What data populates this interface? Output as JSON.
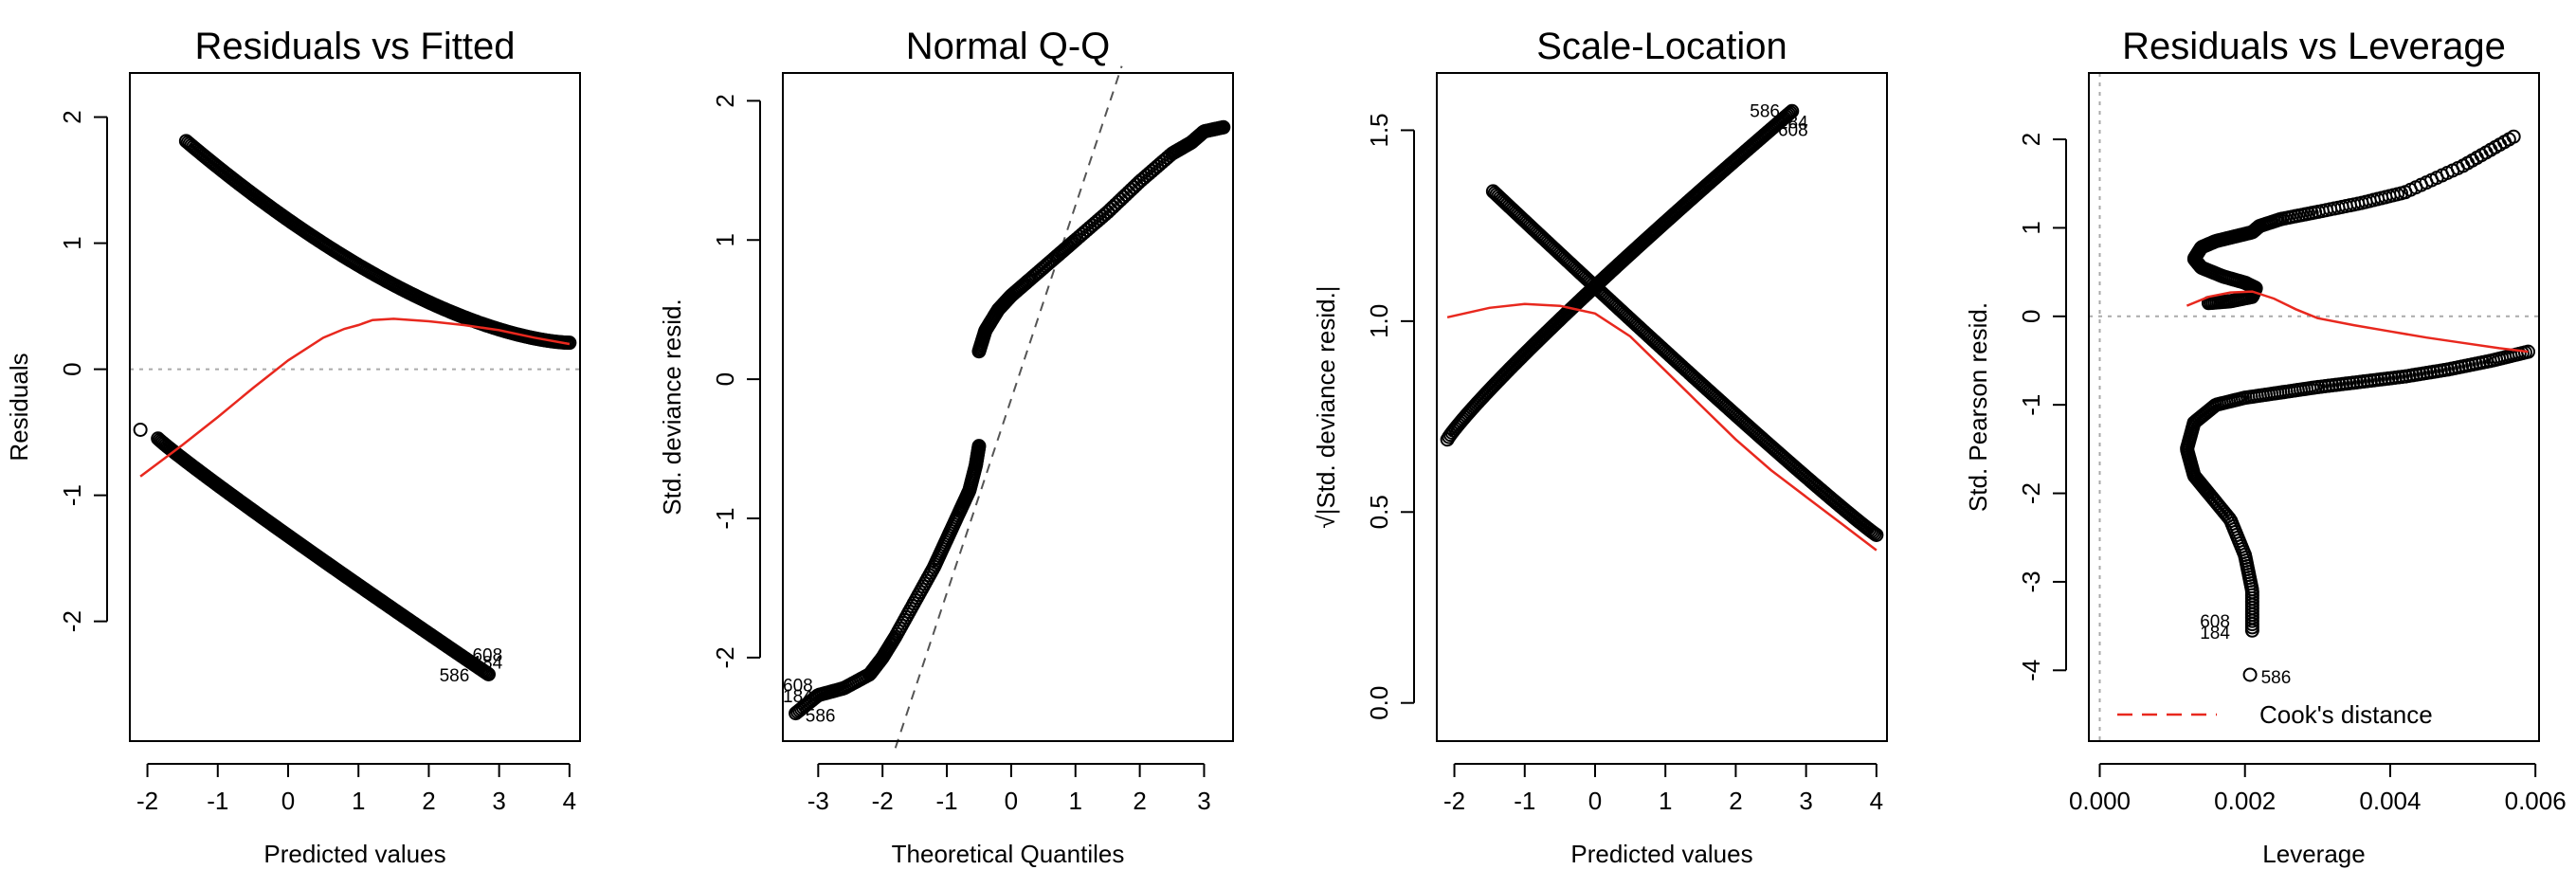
{
  "chart_data": [
    {
      "type": "scatter",
      "title": "Residuals vs Fitted",
      "xlabel": "Predicted values",
      "ylabel": "Residuals",
      "xlim": [
        -2.25,
        4.15
      ],
      "ylim": [
        -2.95,
        2.35
      ],
      "xticks": [
        -2,
        -1,
        0,
        1,
        2,
        3,
        4
      ],
      "yticks": [
        -2,
        -1,
        0,
        1,
        2
      ],
      "reference_lines": [
        {
          "axis": "y",
          "value": 0,
          "style": "dotted",
          "color": "#aaaaaa"
        }
      ],
      "series": [
        {
          "kind": "points",
          "curve": "upper",
          "x_range": [
            -1.45,
            4.0
          ],
          "y_start": 1.81,
          "y_end": 0.21,
          "n": 220
        },
        {
          "kind": "points",
          "curve": "lower",
          "x_range": [
            -1.85,
            2.85
          ],
          "y_start": -0.55,
          "y_end": -2.42,
          "n": 220
        },
        {
          "kind": "points",
          "curve": "single",
          "x": [
            -2.1
          ],
          "y": [
            -0.48
          ]
        },
        {
          "kind": "smooth",
          "color": "#e8281e",
          "x": [
            -2.1,
            -1.5,
            -1.0,
            -0.5,
            0.0,
            0.5,
            0.8,
            1.0,
            1.2,
            1.5,
            2.0,
            2.5,
            3.0,
            3.5,
            4.0
          ],
          "y": [
            -0.85,
            -0.6,
            -0.38,
            -0.15,
            0.07,
            0.25,
            0.32,
            0.35,
            0.39,
            0.4,
            0.38,
            0.35,
            0.31,
            0.25,
            0.2
          ]
        }
      ],
      "point_labels": [
        {
          "text": "608",
          "x": 2.62,
          "y": -2.27
        },
        {
          "text": "184",
          "x": 2.62,
          "y": -2.33
        },
        {
          "text": "586",
          "x": 2.15,
          "y": -2.43
        }
      ]
    },
    {
      "type": "scatter",
      "title": "Normal Q-Q",
      "xlabel": "Theoretical Quantiles",
      "ylabel": "Std. deviance resid.",
      "xlim": [
        -3.55,
        3.45
      ],
      "ylim": [
        -2.6,
        2.2
      ],
      "xticks": [
        -3,
        -2,
        -1,
        0,
        1,
        2,
        3
      ],
      "yticks": [
        -2,
        -1,
        0,
        1,
        2
      ],
      "reference_lines": [
        {
          "axis": "diag",
          "x1": -1.8,
          "y1": -2.65,
          "x2": 1.72,
          "y2": 2.25,
          "style": "dashed",
          "color": "#555555"
        }
      ],
      "series": [
        {
          "kind": "points",
          "curve": "lower_qq",
          "x": [
            -3.35,
            -3.0,
            -2.6,
            -2.2,
            -2.0,
            -1.8,
            -1.5,
            -1.2,
            -1.0,
            -0.8,
            -0.65,
            -0.55,
            -0.5
          ],
          "y": [
            -2.4,
            -2.27,
            -2.22,
            -2.12,
            -2.0,
            -1.85,
            -1.6,
            -1.35,
            -1.15,
            -0.95,
            -0.8,
            -0.62,
            -0.48
          ],
          "n": 150
        },
        {
          "kind": "points",
          "curve": "upper_qq",
          "x": [
            -0.5,
            -0.4,
            -0.2,
            0.0,
            0.3,
            0.7,
            1.0,
            1.5,
            2.0,
            2.5,
            2.8,
            3.0,
            3.3
          ],
          "y": [
            0.2,
            0.35,
            0.5,
            0.6,
            0.72,
            0.88,
            1.0,
            1.2,
            1.42,
            1.62,
            1.7,
            1.78,
            1.81
          ],
          "n": 150
        }
      ],
      "point_labels": [
        {
          "text": "608",
          "x": -3.55,
          "y": -2.2
        },
        {
          "text": "184",
          "x": -3.55,
          "y": -2.28
        },
        {
          "text": "586",
          "x": -3.2,
          "y": -2.42
        }
      ]
    },
    {
      "type": "scatter",
      "title": "Scale-Location",
      "xlabel": "Predicted values",
      "ylabel": "√|Std. deviance resid.|",
      "xlim": [
        -2.25,
        4.15
      ],
      "ylim": [
        -0.1,
        1.65
      ],
      "xticks": [
        -2,
        -1,
        0,
        1,
        2,
        3,
        4
      ],
      "yticks": [
        0.0,
        0.5,
        1.0,
        1.5
      ],
      "yticklabels": [
        "0.0",
        "0.5",
        "1.0",
        "1.5"
      ],
      "series": [
        {
          "kind": "points",
          "curve": "rising",
          "x_range": [
            -2.1,
            2.8
          ],
          "y_start": 0.69,
          "y_end": 1.55,
          "n": 220
        },
        {
          "kind": "points",
          "curve": "falling",
          "x_range": [
            -1.45,
            4.0
          ],
          "y_start": 1.34,
          "y_end": 0.44,
          "n": 220
        },
        {
          "kind": "smooth",
          "color": "#e8281e",
          "x": [
            -2.1,
            -1.5,
            -1.0,
            -0.5,
            0.0,
            0.5,
            1.0,
            1.5,
            2.0,
            2.5,
            3.0,
            3.5,
            4.0
          ],
          "y": [
            1.01,
            1.035,
            1.045,
            1.04,
            1.02,
            0.96,
            0.87,
            0.78,
            0.69,
            0.61,
            0.54,
            0.47,
            0.4
          ]
        }
      ],
      "point_labels": [
        {
          "text": "586",
          "x": 2.2,
          "y": 1.55
        },
        {
          "text": "184",
          "x": 2.6,
          "y": 1.52
        },
        {
          "text": "608",
          "x": 2.6,
          "y": 1.5
        }
      ]
    },
    {
      "type": "scatter",
      "title": "Residuals vs Leverage",
      "xlabel": "Leverage",
      "ylabel": "Std. Pearson resid.",
      "xlim": [
        -0.00015,
        0.00605
      ],
      "ylim": [
        -4.8,
        2.75
      ],
      "xticks": [
        0.0,
        0.002,
        0.004,
        0.006
      ],
      "xticklabels": [
        "0.000",
        "0.002",
        "0.004",
        "0.006"
      ],
      "yticks": [
        -4,
        -3,
        -2,
        -1,
        0,
        1,
        2
      ],
      "reference_lines": [
        {
          "axis": "y",
          "value": 0,
          "style": "dotted",
          "color": "#aaaaaa"
        },
        {
          "axis": "x",
          "value": 0,
          "style": "dotted",
          "color": "#aaaaaa"
        }
      ],
      "series": [
        {
          "kind": "points",
          "curve": "upper_lev",
          "x": [
            0.0057,
            0.005,
            0.0042,
            0.0036,
            0.003,
            0.0025,
            0.0022,
            0.0021,
            0.00185,
            0.0016,
            0.0014,
            0.0013,
            0.0014,
            0.0017,
            0.002,
            0.00215,
            0.0021,
            0.0018,
            0.0015
          ],
          "y": [
            2.03,
            1.7,
            1.4,
            1.28,
            1.18,
            1.1,
            1.02,
            0.95,
            0.9,
            0.85,
            0.78,
            0.65,
            0.55,
            0.45,
            0.38,
            0.32,
            0.22,
            0.17,
            0.15
          ],
          "n": 200
        },
        {
          "kind": "points",
          "curve": "lower_lev",
          "x": [
            0.0059,
            0.0054,
            0.0048,
            0.0042,
            0.0036,
            0.003,
            0.0025,
            0.002,
            0.0016,
            0.0013,
            0.0012,
            0.0013,
            0.0015,
            0.0018,
            0.002,
            0.0021,
            0.0021
          ],
          "y": [
            -0.4,
            -0.5,
            -0.6,
            -0.68,
            -0.74,
            -0.8,
            -0.86,
            -0.92,
            -1.0,
            -1.2,
            -1.5,
            -1.8,
            -2.0,
            -2.3,
            -2.7,
            -3.1,
            -3.55
          ],
          "n": 200
        },
        {
          "kind": "points",
          "curve": "single",
          "x": [
            0.00207
          ],
          "y": [
            -4.05
          ]
        },
        {
          "kind": "smooth",
          "color": "#e8281e",
          "x": [
            0.0012,
            0.0015,
            0.0018,
            0.0021,
            0.0024,
            0.0027,
            0.003,
            0.0035,
            0.004,
            0.0045,
            0.005,
            0.0055,
            0.0059
          ],
          "y": [
            0.12,
            0.22,
            0.27,
            0.28,
            0.2,
            0.08,
            -0.02,
            -0.1,
            -0.17,
            -0.24,
            -0.3,
            -0.36,
            -0.4
          ]
        }
      ],
      "point_labels": [
        {
          "text": "608",
          "x": 0.00138,
          "y": -3.45
        },
        {
          "text": "184",
          "x": 0.00138,
          "y": -3.58
        },
        {
          "text": "586",
          "x": 0.00222,
          "y": -4.08
        }
      ],
      "legend": {
        "position": "bottom",
        "entries": [
          {
            "label": "Cook's distance",
            "color": "#e8281e",
            "style": "dashed"
          }
        ]
      }
    }
  ]
}
